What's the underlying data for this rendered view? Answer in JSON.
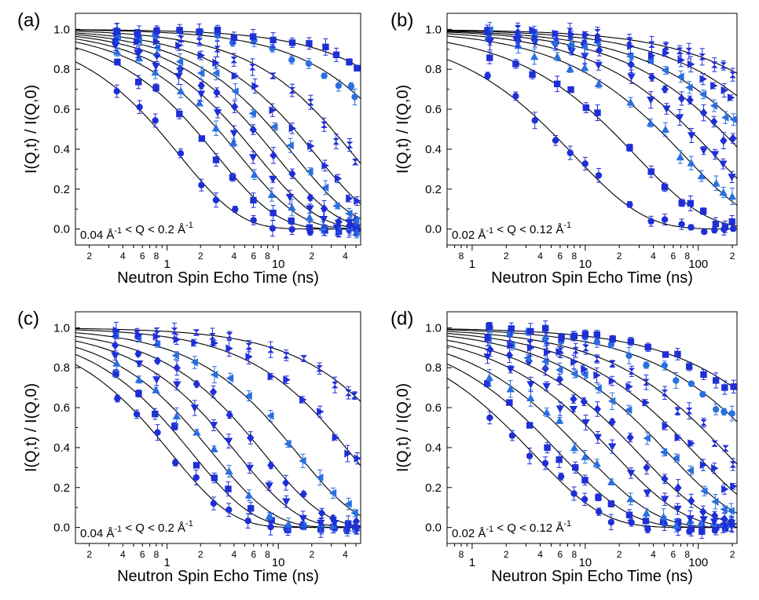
{
  "figure": {
    "marker_color": "#1f2fd6",
    "marker_color_light": "#2a6fe0",
    "line_color": "#000000",
    "sup_minus_one": "-1"
  },
  "chart_data": [
    {
      "type": "scatter",
      "panel_label": "(a)",
      "xlabel": "Neutron Spin Echo Time (ns)",
      "ylabel": "I(Q,t) / I(Q,0)",
      "xscale": "log",
      "xlim": [
        0.15,
        55
      ],
      "ylim": [
        -0.08,
        1.08
      ],
      "y_ticks": [
        "0.0",
        "0.2",
        "0.4",
        "0.6",
        "0.8",
        "1.0"
      ],
      "x_major_ticks": [
        "1",
        "10"
      ],
      "x_minor_labels": [
        {
          "value": 0.2,
          "label": "2"
        },
        {
          "value": 0.4,
          "label": "4"
        },
        {
          "value": 0.6,
          "label": "6"
        },
        {
          "value": 0.8,
          "label": "8"
        },
        {
          "value": 2,
          "label": "2"
        },
        {
          "value": 4,
          "label": "4"
        },
        {
          "value": 6,
          "label": "6"
        },
        {
          "value": 8,
          "label": "8"
        },
        {
          "value": 20,
          "label": "2"
        },
        {
          "value": 40,
          "label": "4"
        }
      ],
      "annotation": {
        "q_min": "0.04",
        "q_max": "0.2",
        "unit": "Å",
        "text_mid": "< Q <"
      },
      "curves": [
        {
          "tau": 1.3,
          "beta": 0.8
        },
        {
          "tau": 2.8,
          "beta": 0.8
        },
        {
          "tau": 4.5,
          "beta": 0.8
        },
        {
          "tau": 6.5,
          "beta": 0.8
        },
        {
          "tau": 9.5,
          "beta": 0.8
        },
        {
          "tau": 14,
          "beta": 0.8
        },
        {
          "tau": 22,
          "beta": 0.8
        },
        {
          "tau": 48,
          "beta": 0.8
        },
        {
          "tau": 160,
          "beta": 0.8
        },
        {
          "tau": 380,
          "beta": 0.8
        }
      ],
      "x_points": [
        0.35,
        0.55,
        0.8,
        1.3,
        2.0,
        2.8,
        4.0,
        6.0,
        9.0,
        13,
        19,
        26,
        34,
        44,
        50
      ]
    },
    {
      "type": "scatter",
      "panel_label": "(b)",
      "xlabel": "Neutron Spin Echo Time (ns)",
      "ylabel": "I(Q,t) / I(Q,0)",
      "xscale": "log",
      "xlim": [
        0.6,
        220
      ],
      "ylim": [
        -0.08,
        1.08
      ],
      "y_ticks": [
        "0.0",
        "0.2",
        "0.4",
        "0.6",
        "0.8",
        "1.0"
      ],
      "x_major_ticks": [
        "1",
        "10",
        "100"
      ],
      "x_minor_labels": [
        {
          "value": 0.8,
          "label": "8"
        },
        {
          "value": 2,
          "label": "2"
        },
        {
          "value": 4,
          "label": "4"
        },
        {
          "value": 6,
          "label": "6"
        },
        {
          "value": 8,
          "label": "8"
        },
        {
          "value": 20,
          "label": "2"
        },
        {
          "value": 40,
          "label": "4"
        },
        {
          "value": 60,
          "label": "6"
        },
        {
          "value": 80,
          "label": "8"
        },
        {
          "value": 200,
          "label": "2"
        }
      ],
      "annotation": {
        "q_min": "0.02",
        "q_max": "0.12",
        "unit": "Å",
        "text_mid": "< Q <"
      },
      "curves": [
        {
          "tau": 8,
          "beta": 0.7
        },
        {
          "tau": 28,
          "beta": 0.7
        },
        {
          "tau": 75,
          "beta": 0.7
        },
        {
          "tau": 140,
          "beta": 0.7
        },
        {
          "tau": 260,
          "beta": 0.7
        },
        {
          "tau": 420,
          "beta": 0.7
        },
        {
          "tau": 800,
          "beta": 0.7
        },
        {
          "tau": 1600,
          "beta": 0.7
        }
      ],
      "x_points": [
        1.4,
        2.5,
        3.5,
        5.5,
        7.5,
        10,
        13,
        25,
        38,
        52,
        70,
        85,
        110,
        140,
        170,
        200
      ]
    },
    {
      "type": "scatter",
      "panel_label": "(c)",
      "xlabel": "Neutron Spin Echo Time (ns)",
      "ylabel": "I(Q,t) / I(Q,0)",
      "xscale": "log",
      "xlim": [
        0.15,
        55
      ],
      "ylim": [
        -0.08,
        1.08
      ],
      "y_ticks": [
        "0.0",
        "0.2",
        "0.4",
        "0.6",
        "0.8",
        "1.0"
      ],
      "x_major_ticks": [
        "1",
        "10"
      ],
      "x_minor_labels": [
        {
          "value": 0.2,
          "label": "2"
        },
        {
          "value": 0.4,
          "label": "4"
        },
        {
          "value": 0.6,
          "label": "6"
        },
        {
          "value": 0.8,
          "label": "8"
        },
        {
          "value": 2,
          "label": "2"
        },
        {
          "value": 4,
          "label": "4"
        },
        {
          "value": 6,
          "label": "6"
        },
        {
          "value": 8,
          "label": "8"
        },
        {
          "value": 20,
          "label": "2"
        },
        {
          "value": 40,
          "label": "4"
        }
      ],
      "annotation": {
        "q_min": "0.04",
        "q_max": "0.2",
        "unit": "Å",
        "text_mid": "< Q <"
      },
      "curves": [
        {
          "tau": 1.1,
          "beta": 0.8
        },
        {
          "tau": 1.7,
          "beta": 0.8
        },
        {
          "tau": 2.6,
          "beta": 0.8
        },
        {
          "tau": 4.3,
          "beta": 0.8
        },
        {
          "tau": 7.5,
          "beta": 0.8
        },
        {
          "tau": 15,
          "beta": 0.8
        },
        {
          "tau": 45,
          "beta": 0.8
        },
        {
          "tau": 145,
          "beta": 0.8
        }
      ],
      "x_points": [
        0.35,
        0.55,
        0.8,
        1.2,
        1.8,
        2.6,
        3.6,
        5.5,
        8.5,
        12,
        17,
        24,
        32,
        42,
        50
      ]
    },
    {
      "type": "scatter",
      "panel_label": "(d)",
      "xlabel": "Neutron Spin Echo Time (ns)",
      "ylabel": "I(Q,t) / I(Q,0)",
      "xscale": "log",
      "xlim": [
        0.6,
        220
      ],
      "ylim": [
        -0.08,
        1.08
      ],
      "y_ticks": [
        "0.0",
        "0.2",
        "0.4",
        "0.6",
        "0.8",
        "1.0"
      ],
      "x_major_ticks": [
        "1",
        "10",
        "100"
      ],
      "x_minor_labels": [
        {
          "value": 0.8,
          "label": "8"
        },
        {
          "value": 2,
          "label": "2"
        },
        {
          "value": 4,
          "label": "4"
        },
        {
          "value": 6,
          "label": "6"
        },
        {
          "value": 8,
          "label": "8"
        },
        {
          "value": 20,
          "label": "2"
        },
        {
          "value": 40,
          "label": "4"
        },
        {
          "value": 60,
          "label": "6"
        },
        {
          "value": 80,
          "label": "8"
        },
        {
          "value": 200,
          "label": "2"
        }
      ],
      "annotation": {
        "q_min": "0.02",
        "q_max": "0.12",
        "unit": "Å",
        "text_mid": "< Q <"
      },
      "curves": [
        {
          "tau": 3.5,
          "beta": 0.7
        },
        {
          "tau": 6,
          "beta": 0.7
        },
        {
          "tau": 10,
          "beta": 0.7
        },
        {
          "tau": 18,
          "beta": 0.7
        },
        {
          "tau": 30,
          "beta": 0.7
        },
        {
          "tau": 55,
          "beta": 0.7
        },
        {
          "tau": 95,
          "beta": 0.7
        },
        {
          "tau": 180,
          "beta": 0.7
        },
        {
          "tau": 420,
          "beta": 0.7
        },
        {
          "tau": 900,
          "beta": 0.7
        }
      ],
      "x_points": [
        1.4,
        2.2,
        3.2,
        4.5,
        6,
        8,
        10,
        13,
        17,
        25,
        35,
        50,
        65,
        85,
        110,
        140,
        170,
        200
      ]
    }
  ]
}
